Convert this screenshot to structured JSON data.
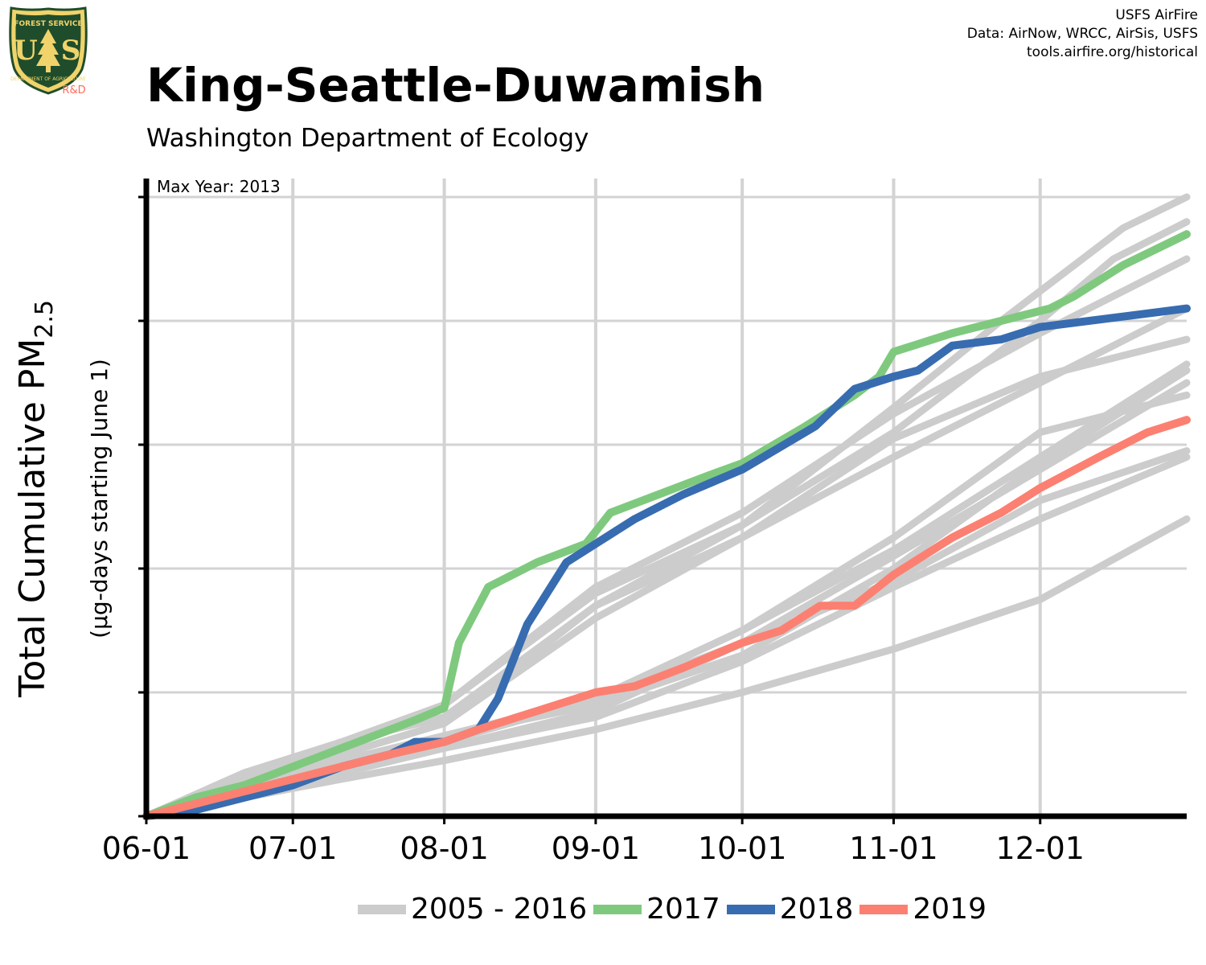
{
  "header": {
    "logo_text": [
      "FOREST SERVICE",
      "U",
      "S",
      "DEPARTMENT OF AGRICULTURE"
    ],
    "logo_rd": "R&D",
    "credits": [
      "USFS AirFire",
      "Data: AirNow, WRCC, AirSis, USFS",
      "tools.airfire.org/historical"
    ],
    "title": "King-Seattle-Duwamish",
    "subtitle": "Washington Department of Ecology"
  },
  "colors": {
    "historical": "#cccccc",
    "y2017": "#7fc97f",
    "y2018": "#386cb0",
    "y2019": "#fb8072",
    "grid": "#d3d3d3",
    "axis": "#000000",
    "logo_green": "#1f4d2b",
    "logo_gold": "#f0d36b",
    "logo_rd": "#ff6b5b"
  },
  "chart_data": {
    "type": "line",
    "title": "King-Seattle-Duwamish",
    "subtitle": "Washington Department of Ecology",
    "xlabel": "",
    "ylabel": "Total Cumulative PM2.5",
    "ylabel_main": "Total Cumulative PM",
    "ylabel_sub": "2.5",
    "ylabel_units": "(µg-days starting June 1)",
    "annotation": "Max Year: 2013",
    "x_tick_labels": [
      "06-01",
      "07-01",
      "08-01",
      "09-01",
      "10-01",
      "11-01",
      "12-01"
    ],
    "x_tick_days": [
      0,
      30,
      61,
      92,
      122,
      153,
      183
    ],
    "xlim": [
      0,
      213
    ],
    "ylim": [
      0,
      1
    ],
    "y_ticks": [
      0,
      0.2,
      0.4,
      0.6,
      0.8,
      1.0
    ],
    "y_tick_labels_visible": false,
    "grid": true,
    "legend_position": "bottom",
    "legend": [
      "2005 - 2016",
      "2017",
      "2018",
      "2019"
    ],
    "historical": {
      "name": "2005 - 2016",
      "series": [
        [
          [
            0,
            0
          ],
          [
            20,
            0.07
          ],
          [
            40,
            0.12
          ],
          [
            61,
            0.18
          ],
          [
            92,
            0.36
          ],
          [
            122,
            0.47
          ],
          [
            153,
            0.66
          ],
          [
            175,
            0.8
          ],
          [
            200,
            0.95
          ],
          [
            213,
            1.0
          ]
        ],
        [
          [
            0,
            0
          ],
          [
            20,
            0.06
          ],
          [
            40,
            0.12
          ],
          [
            61,
            0.16
          ],
          [
            92,
            0.34
          ],
          [
            122,
            0.47
          ],
          [
            153,
            0.62
          ],
          [
            183,
            0.8
          ],
          [
            198,
            0.9
          ],
          [
            213,
            0.96
          ]
        ],
        [
          [
            0,
            0
          ],
          [
            20,
            0.05
          ],
          [
            40,
            0.1
          ],
          [
            61,
            0.15
          ],
          [
            92,
            0.34
          ],
          [
            122,
            0.45
          ],
          [
            153,
            0.58
          ],
          [
            183,
            0.7
          ],
          [
            213,
            0.82
          ]
        ],
        [
          [
            0,
            0
          ],
          [
            20,
            0.06
          ],
          [
            40,
            0.11
          ],
          [
            61,
            0.18
          ],
          [
            92,
            0.37
          ],
          [
            122,
            0.49
          ],
          [
            153,
            0.65
          ],
          [
            183,
            0.78
          ],
          [
            213,
            0.9
          ]
        ],
        [
          [
            0,
            0
          ],
          [
            20,
            0.05
          ],
          [
            40,
            0.1
          ],
          [
            61,
            0.15
          ],
          [
            92,
            0.32
          ],
          [
            122,
            0.45
          ],
          [
            153,
            0.61
          ],
          [
            183,
            0.71
          ],
          [
            213,
            0.77
          ]
        ],
        [
          [
            0,
            0
          ],
          [
            20,
            0.05
          ],
          [
            40,
            0.09
          ],
          [
            61,
            0.13
          ],
          [
            92,
            0.18
          ],
          [
            122,
            0.26
          ],
          [
            153,
            0.4
          ],
          [
            183,
            0.57
          ],
          [
            213,
            0.72
          ]
        ],
        [
          [
            0,
            0
          ],
          [
            20,
            0.04
          ],
          [
            40,
            0.08
          ],
          [
            61,
            0.13
          ],
          [
            92,
            0.19
          ],
          [
            122,
            0.3
          ],
          [
            153,
            0.43
          ],
          [
            183,
            0.58
          ],
          [
            213,
            0.73
          ]
        ],
        [
          [
            0,
            0
          ],
          [
            20,
            0.04
          ],
          [
            40,
            0.07
          ],
          [
            61,
            0.11
          ],
          [
            92,
            0.17
          ],
          [
            122,
            0.28
          ],
          [
            153,
            0.38
          ],
          [
            183,
            0.51
          ],
          [
            213,
            0.59
          ]
        ],
        [
          [
            0,
            0
          ],
          [
            20,
            0.04
          ],
          [
            40,
            0.07
          ],
          [
            61,
            0.11
          ],
          [
            92,
            0.16
          ],
          [
            122,
            0.25
          ],
          [
            153,
            0.37
          ],
          [
            183,
            0.48
          ],
          [
            213,
            0.58
          ]
        ],
        [
          [
            0,
            0
          ],
          [
            20,
            0.03
          ],
          [
            40,
            0.06
          ],
          [
            61,
            0.09
          ],
          [
            92,
            0.14
          ],
          [
            122,
            0.2
          ],
          [
            153,
            0.27
          ],
          [
            183,
            0.35
          ],
          [
            213,
            0.48
          ]
        ],
        [
          [
            0,
            0
          ],
          [
            20,
            0.04
          ],
          [
            40,
            0.08
          ],
          [
            61,
            0.13
          ],
          [
            92,
            0.19
          ],
          [
            122,
            0.3
          ],
          [
            153,
            0.45
          ],
          [
            183,
            0.62
          ],
          [
            213,
            0.68
          ]
        ],
        [
          [
            0,
            0
          ],
          [
            20,
            0.04
          ],
          [
            40,
            0.08
          ],
          [
            61,
            0.12
          ],
          [
            92,
            0.19
          ],
          [
            122,
            0.28
          ],
          [
            153,
            0.42
          ],
          [
            183,
            0.56
          ],
          [
            213,
            0.7
          ]
        ]
      ]
    },
    "series": [
      {
        "name": "2017",
        "points": [
          [
            0,
            0
          ],
          [
            10,
            0.03
          ],
          [
            20,
            0.05
          ],
          [
            30,
            0.08
          ],
          [
            40,
            0.11
          ],
          [
            50,
            0.14
          ],
          [
            55,
            0.155
          ],
          [
            61,
            0.175
          ],
          [
            64,
            0.28
          ],
          [
            70,
            0.37
          ],
          [
            80,
            0.41
          ],
          [
            90,
            0.44
          ],
          [
            95,
            0.49
          ],
          [
            105,
            0.52
          ],
          [
            115,
            0.55
          ],
          [
            122,
            0.57
          ],
          [
            135,
            0.63
          ],
          [
            145,
            0.68
          ],
          [
            150,
            0.71
          ],
          [
            153,
            0.75
          ],
          [
            165,
            0.78
          ],
          [
            175,
            0.8
          ],
          [
            185,
            0.82
          ],
          [
            190,
            0.84
          ],
          [
            200,
            0.89
          ],
          [
            213,
            0.94
          ]
        ]
      },
      {
        "name": "2018",
        "points": [
          [
            0,
            0
          ],
          [
            10,
            0.01
          ],
          [
            20,
            0.03
          ],
          [
            30,
            0.05
          ],
          [
            40,
            0.08
          ],
          [
            50,
            0.1
          ],
          [
            55,
            0.12
          ],
          [
            61,
            0.12
          ],
          [
            68,
            0.14
          ],
          [
            72,
            0.19
          ],
          [
            78,
            0.31
          ],
          [
            86,
            0.41
          ],
          [
            92,
            0.44
          ],
          [
            100,
            0.48
          ],
          [
            110,
            0.52
          ],
          [
            122,
            0.56
          ],
          [
            137,
            0.63
          ],
          [
            145,
            0.69
          ],
          [
            153,
            0.71
          ],
          [
            158,
            0.72
          ],
          [
            165,
            0.76
          ],
          [
            175,
            0.77
          ],
          [
            183,
            0.79
          ],
          [
            213,
            0.82
          ]
        ]
      },
      {
        "name": "2019",
        "points": [
          [
            0,
            0
          ],
          [
            10,
            0.02
          ],
          [
            20,
            0.04
          ],
          [
            30,
            0.06
          ],
          [
            40,
            0.08
          ],
          [
            50,
            0.1
          ],
          [
            61,
            0.12
          ],
          [
            68,
            0.14
          ],
          [
            80,
            0.17
          ],
          [
            92,
            0.2
          ],
          [
            100,
            0.21
          ],
          [
            110,
            0.24
          ],
          [
            122,
            0.28
          ],
          [
            130,
            0.3
          ],
          [
            138,
            0.34
          ],
          [
            145,
            0.34
          ],
          [
            153,
            0.39
          ],
          [
            165,
            0.45
          ],
          [
            175,
            0.49
          ],
          [
            183,
            0.53
          ],
          [
            195,
            0.58
          ],
          [
            205,
            0.62
          ],
          [
            213,
            0.64
          ]
        ]
      }
    ]
  }
}
